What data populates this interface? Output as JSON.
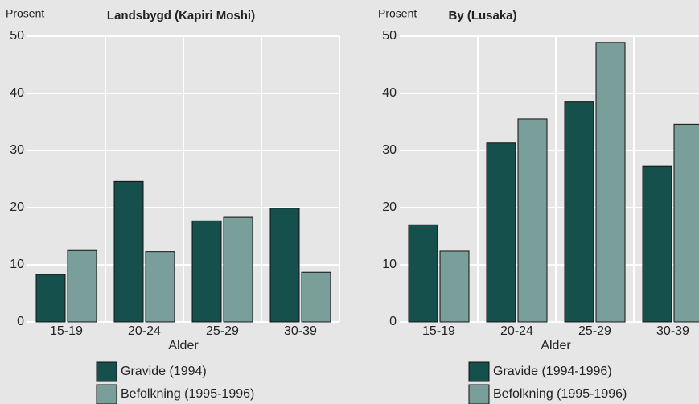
{
  "chart_data": [
    {
      "type": "bar",
      "title": "Landsbygd (Kapiri Moshi)",
      "y_label": "Prosent",
      "x_label": "Alder",
      "categories": [
        "15-19",
        "20-24",
        "25-29",
        "30-39"
      ],
      "series": [
        {
          "name": "Gravide (1994)",
          "color": "#16504c",
          "values": [
            8.3,
            24.6,
            17.7,
            19.9
          ]
        },
        {
          "name": "Befolkning (1995-1996)",
          "color": "#7a9e99",
          "values": [
            12.5,
            12.3,
            18.3,
            8.7
          ]
        }
      ],
      "ylim": [
        0,
        50
      ],
      "yticks": [
        0,
        10,
        20,
        30,
        40,
        50
      ],
      "grid": true
    },
    {
      "type": "bar",
      "title": "By (Lusaka)",
      "y_label": "Prosent",
      "x_label": "Alder",
      "categories": [
        "15-19",
        "20-24",
        "25-29",
        "30-39"
      ],
      "series": [
        {
          "name": "Gravide (1994-1996)",
          "color": "#16504c",
          "values": [
            17.0,
            31.3,
            38.5,
            27.3
          ]
        },
        {
          "name": "Befolkning (1995-1996)",
          "color": "#7a9e99",
          "values": [
            12.4,
            35.5,
            48.9,
            34.6
          ]
        }
      ],
      "ylim": [
        0,
        50
      ],
      "yticks": [
        0,
        10,
        20,
        30,
        40,
        50
      ],
      "grid": true
    }
  ]
}
